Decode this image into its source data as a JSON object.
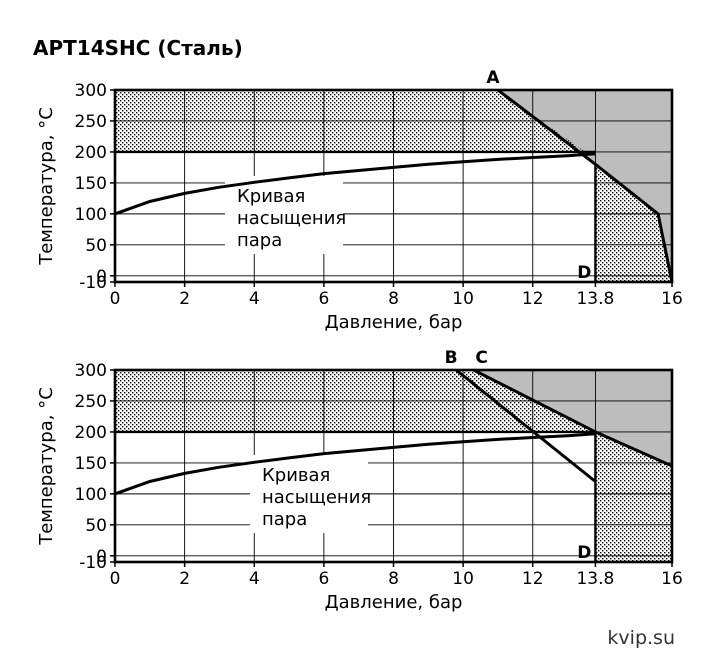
{
  "title": "APT14SHC (Сталь)",
  "watermark": "kvip.su",
  "colors": {
    "forbidden": "#bdbdbd",
    "dots": "#000000",
    "line": "#000000"
  },
  "chart_data": [
    {
      "type": "line",
      "xlabel": "Давление, бар",
      "ylabel": "Температура, °С",
      "xticks": [
        0,
        2,
        4,
        6,
        8,
        10,
        12,
        13.8,
        16
      ],
      "yticks": [
        -10,
        0,
        50,
        100,
        150,
        200,
        250,
        300
      ],
      "xlim": [
        0,
        16
      ],
      "ylim": [
        -10,
        300
      ],
      "grid": true,
      "curve_label": [
        "Кривая",
        "насыщения",
        "пара"
      ],
      "saturation_curve": {
        "x": [
          0,
          1,
          2,
          3,
          4,
          5,
          6,
          7,
          8,
          9,
          10,
          11,
          12,
          13,
          13.8
        ],
        "y": [
          100,
          120,
          133,
          143,
          151,
          158,
          165,
          170,
          175,
          180,
          184,
          188,
          191,
          194,
          197
        ]
      },
      "limit_line": {
        "x": [
          11,
          13.8,
          15.6,
          16
        ],
        "y": [
          300,
          180,
          100,
          -10
        ]
      },
      "hatched_regions": [
        {
          "x": [
            0,
            11,
            13.5,
            0
          ],
          "y": [
            300,
            300,
            200,
            200
          ]
        },
        {
          "x": [
            13.8,
            15.6,
            16,
            13.8
          ],
          "y": [
            180,
            100,
            -10,
            -10
          ]
        }
      ],
      "forbidden_region": {
        "x": [
          11,
          16,
          16,
          15.6,
          13.8
        ],
        "y": [
          300,
          300,
          -10,
          100,
          180
        ]
      },
      "markers": [
        {
          "label": "A",
          "x": 11,
          "y": 300,
          "pos": "above"
        },
        {
          "label": "D",
          "x": 13.8,
          "y": -10,
          "pos": "inside-left"
        }
      ]
    },
    {
      "type": "line",
      "xlabel": "Давление, бар",
      "ylabel": "Температура, °С",
      "xticks": [
        0,
        2,
        4,
        6,
        8,
        10,
        12,
        13.8,
        16
      ],
      "yticks": [
        -10,
        0,
        50,
        100,
        150,
        200,
        250,
        300
      ],
      "xlim": [
        0,
        16
      ],
      "ylim": [
        -10,
        300
      ],
      "grid": true,
      "curve_label": [
        "Кривая",
        "насыщения",
        "пара"
      ],
      "saturation_curve": {
        "x": [
          0,
          1,
          2,
          3,
          4,
          5,
          6,
          7,
          8,
          9,
          10,
          11,
          12,
          13,
          13.8
        ],
        "y": [
          100,
          120,
          133,
          143,
          151,
          158,
          165,
          170,
          175,
          180,
          184,
          188,
          191,
          194,
          197
        ]
      },
      "line_B": {
        "x": [
          9.8,
          13.8
        ],
        "y": [
          300,
          120
        ]
      },
      "limit_line": {
        "x": [
          10.3,
          13.8,
          16
        ],
        "y": [
          300,
          200,
          145
        ]
      },
      "hatched_regions": [
        {
          "x": [
            0,
            10.3,
            13.8,
            0
          ],
          "y": [
            300,
            300,
            200,
            200
          ]
        },
        {
          "x": [
            13.8,
            16,
            16,
            13.8
          ],
          "y": [
            200,
            145,
            -10,
            -10
          ]
        }
      ],
      "forbidden_region": {
        "x": [
          10.3,
          16,
          16,
          13.8
        ],
        "y": [
          300,
          300,
          145,
          200
        ]
      },
      "markers": [
        {
          "label": "B",
          "x": 9.8,
          "y": 300,
          "pos": "above"
        },
        {
          "label": "C",
          "x": 10.3,
          "y": 300,
          "pos": "above-right"
        },
        {
          "label": "D",
          "x": 13.8,
          "y": -10,
          "pos": "inside-left"
        }
      ]
    }
  ]
}
